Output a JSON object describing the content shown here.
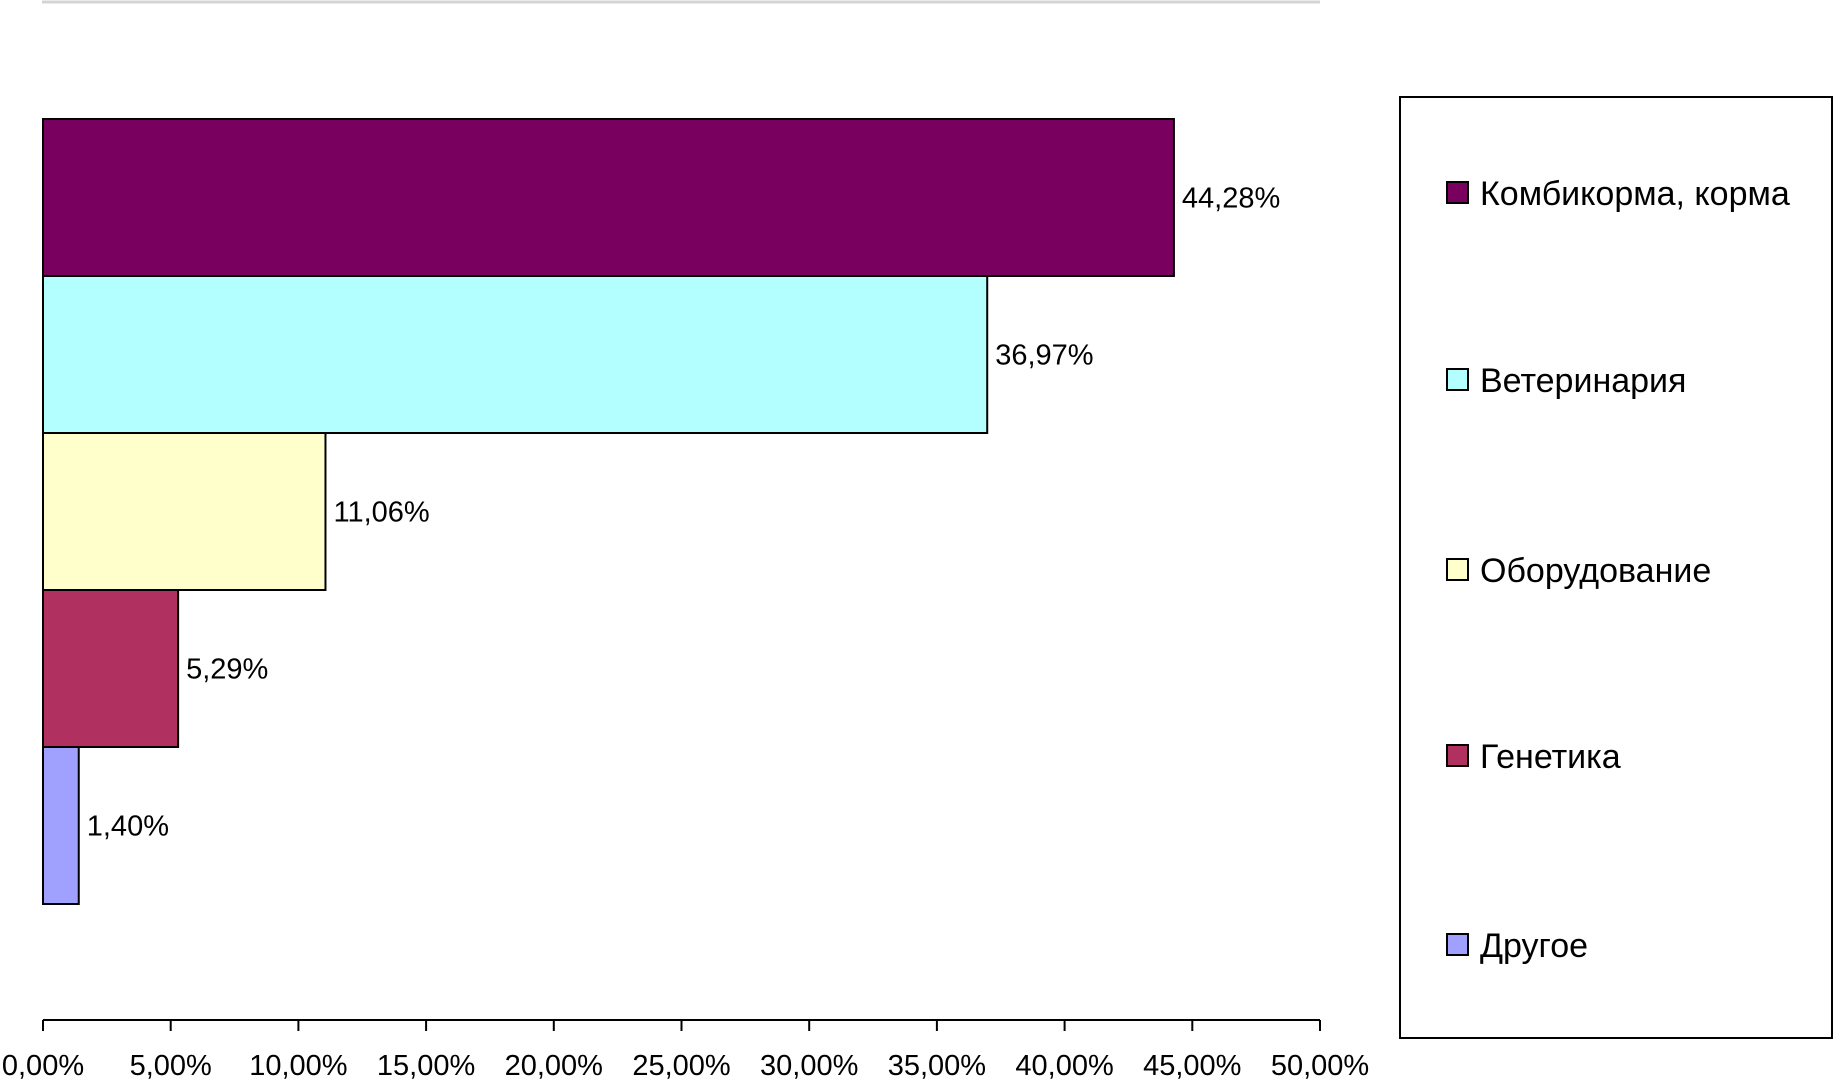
{
  "chart_data": {
    "type": "bar",
    "orientation": "horizontal",
    "categories": [
      "Комбикорма, корма",
      "Ветеринария",
      "Оборудование",
      "Генетика",
      "Другое"
    ],
    "values": [
      44.28,
      36.97,
      11.06,
      5.29,
      1.4
    ],
    "value_labels": [
      "44,28%",
      "36,97%",
      "11,06%",
      "5,29%",
      "1,40%"
    ],
    "colors": [
      "#7a0060",
      "#b3ffff",
      "#ffffcc",
      "#b03060",
      "#a0a0ff"
    ],
    "xlim": [
      0,
      50
    ],
    "x_ticks": [
      0,
      5,
      10,
      15,
      20,
      25,
      30,
      35,
      40,
      45,
      50
    ],
    "x_tick_labels": [
      "0,00%",
      "5,00%",
      "10,00%",
      "15,00%",
      "20,00%",
      "25,00%",
      "30,00%",
      "35,00%",
      "40,00%",
      "45,00%",
      "50,00%"
    ],
    "title": "",
    "xlabel": "",
    "ylabel": "",
    "grid": false,
    "legend": {
      "position": "right",
      "entries": [
        "Комбикорма, корма",
        "Ветеринария",
        "Оборудование",
        "Генетика",
        "Другое"
      ]
    }
  }
}
